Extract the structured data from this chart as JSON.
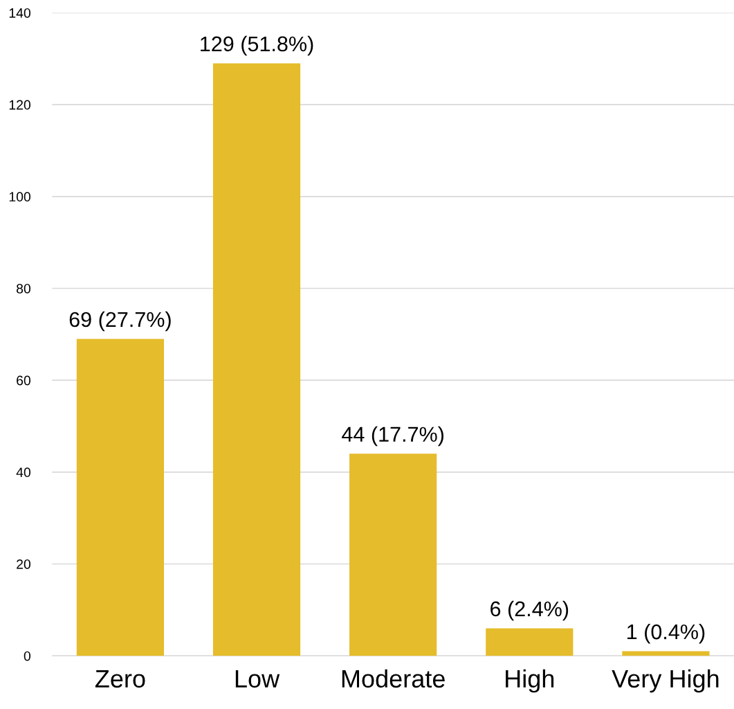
{
  "chart_data": {
    "type": "bar",
    "categories": [
      "Zero",
      "Low",
      "Moderate",
      "High",
      "Very High"
    ],
    "values": [
      69,
      129,
      44,
      6,
      1
    ],
    "value_labels": [
      "69 (27.7%)",
      "129 (51.8%)",
      "44 (17.7%)",
      "6 (2.4%)",
      "1 (0.4%)"
    ],
    "color": "#e5bc2b",
    "ylim": [
      0,
      140
    ],
    "yticks": [
      0,
      20,
      40,
      60,
      80,
      100,
      120,
      140
    ],
    "grid": "y"
  }
}
